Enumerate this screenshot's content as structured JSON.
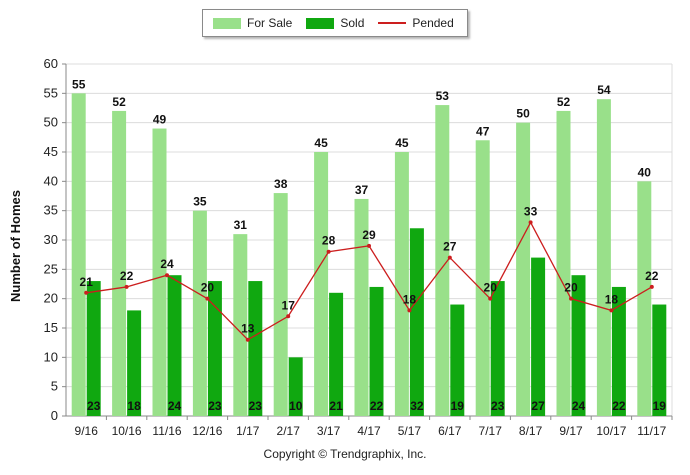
{
  "chart_data": {
    "type": "bar",
    "categories": [
      "9/16",
      "10/16",
      "11/16",
      "12/16",
      "1/17",
      "2/17",
      "3/17",
      "4/17",
      "5/17",
      "6/17",
      "7/17",
      "8/17",
      "9/17",
      "10/17",
      "11/17"
    ],
    "series": [
      {
        "name": "For Sale",
        "type": "bar",
        "color": "#99e08a",
        "values": [
          55,
          52,
          49,
          35,
          31,
          38,
          45,
          37,
          45,
          53,
          47,
          50,
          52,
          54,
          40
        ]
      },
      {
        "name": "Sold",
        "type": "bar",
        "color": "#10a810",
        "values": [
          23,
          18,
          24,
          23,
          23,
          10,
          21,
          22,
          32,
          19,
          23,
          27,
          24,
          22,
          19
        ]
      },
      {
        "name": "Pended",
        "type": "line",
        "color": "#cc1e1e",
        "values": [
          21,
          22,
          24,
          20,
          13,
          17,
          28,
          29,
          18,
          27,
          20,
          33,
          20,
          18,
          22
        ]
      }
    ],
    "ylabel": "Number of Homes",
    "xlabel": "",
    "ylim": [
      0,
      60
    ],
    "yticks": [
      0,
      5,
      10,
      15,
      20,
      25,
      30,
      35,
      40,
      45,
      50,
      55,
      60
    ],
    "grid": true,
    "legend_position": "top-center"
  },
  "legend": {
    "for_sale": "For Sale",
    "sold": "Sold",
    "pended": "Pended"
  },
  "ylabel": "Number of Homes",
  "copyright": "Copyright © Trendgraphix, Inc."
}
